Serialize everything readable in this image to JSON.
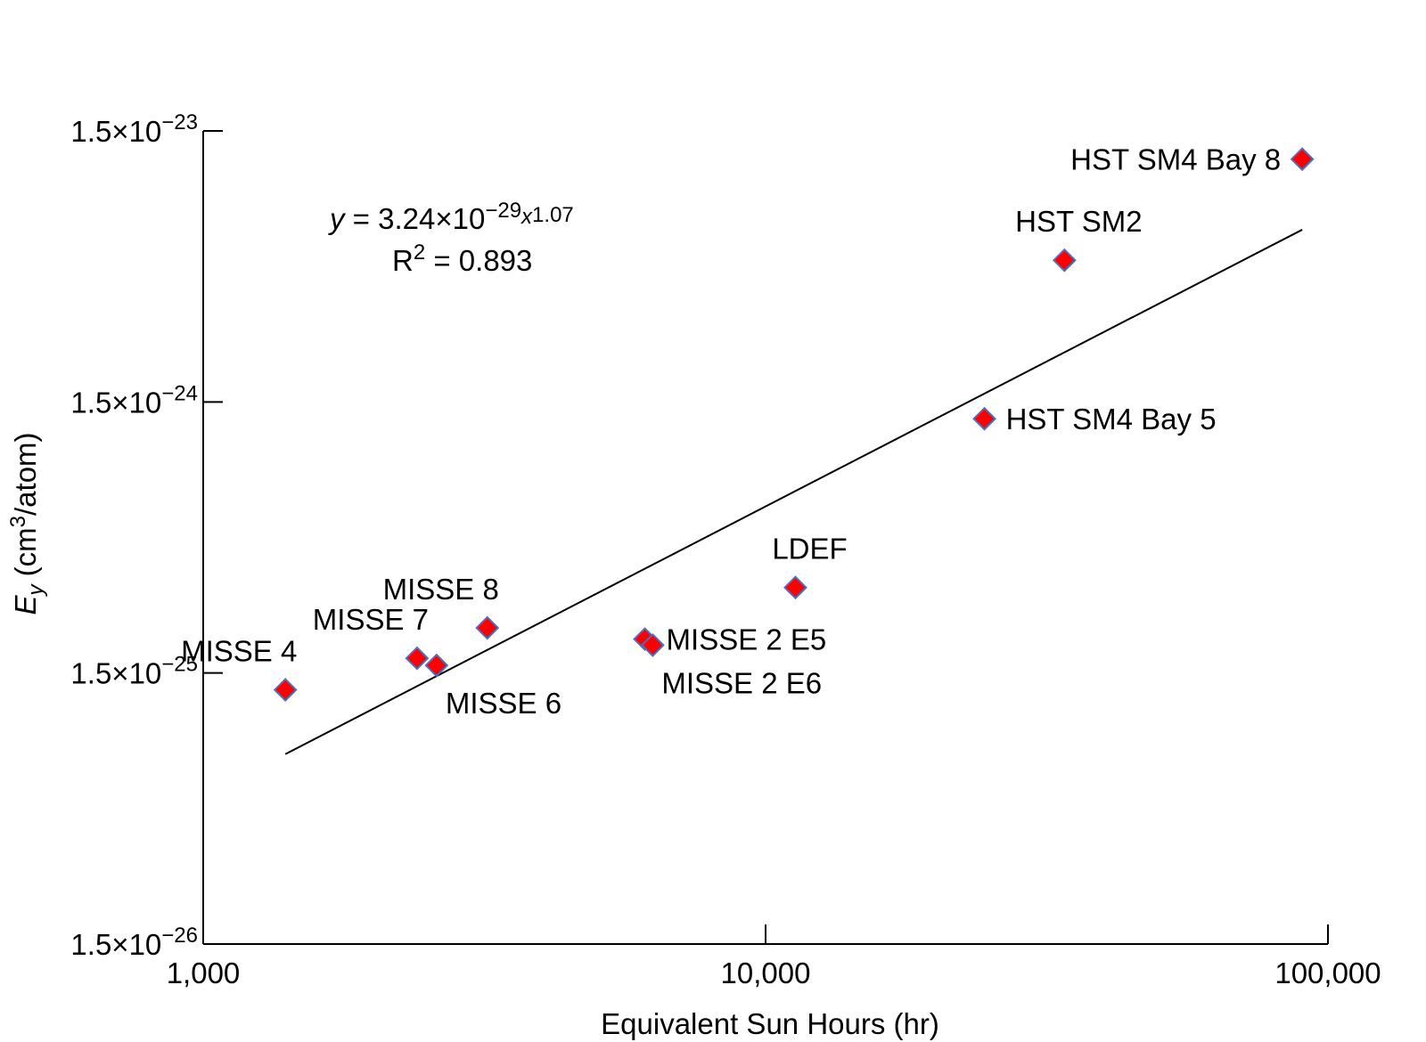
{
  "chart_data": {
    "type": "scatter",
    "title": "",
    "xlabel": "Equivalent Sun Hours (hr)",
    "ylabel": {
      "var": "E",
      "sub": "y",
      "unit_open": " (cm",
      "unit_sup": "3",
      "unit_close": "/atom)"
    },
    "x_scale": "log",
    "y_scale": "log",
    "xlim": [
      1000,
      100000
    ],
    "ylim": [
      1.5e-26,
      1.5e-23
    ],
    "grid": false,
    "x_ticks": [
      {
        "value": 1000,
        "label": "1,000"
      },
      {
        "value": 10000,
        "label": "10,000"
      },
      {
        "value": 100000,
        "label": "100,000"
      }
    ],
    "y_ticks": [
      {
        "value": 1.5e-23,
        "mantissa": "1.5×10",
        "exp": "−23"
      },
      {
        "value": 1.5e-24,
        "mantissa": "1.5×10",
        "exp": "−24"
      },
      {
        "value": 1.5e-25,
        "mantissa": "1.5×10",
        "exp": "−25"
      },
      {
        "value": 1.5e-26,
        "mantissa": "1.5×10",
        "exp": "−26"
      }
    ],
    "points": [
      {
        "label": "MISSE 4",
        "x": 1400,
        "y": 1.3e-25,
        "label_pos": "above-left"
      },
      {
        "label": "MISSE 7",
        "x": 2400,
        "y": 1.7e-25,
        "label_pos": "above-left"
      },
      {
        "label": "MISSE 6",
        "x": 2600,
        "y": 1.6e-25,
        "label_pos": "below-right"
      },
      {
        "label": "MISSE 8",
        "x": 3200,
        "y": 2.2e-25,
        "label_pos": "above-left"
      },
      {
        "label": "MISSE 2 E5",
        "x": 6100,
        "y": 2e-25,
        "label_pos": "right"
      },
      {
        "label": "MISSE 2 E6",
        "x": 6300,
        "y": 1.9e-25,
        "label_pos": "below-right"
      },
      {
        "label": "LDEF",
        "x": 11300,
        "y": 3.1e-25,
        "label_pos": "above"
      },
      {
        "label": "HST SM4 Bay 5",
        "x": 24500,
        "y": 1.3e-24,
        "label_pos": "right"
      },
      {
        "label": "HST SM2",
        "x": 34000,
        "y": 5e-24,
        "label_pos": "above"
      },
      {
        "label": "HST SM4 Bay 8",
        "x": 90000,
        "y": 1.18e-23,
        "label_pos": "left"
      }
    ],
    "marker": {
      "shape": "diamond",
      "fill": "#ff0000",
      "stroke": "#4a6fc0"
    },
    "fit": {
      "type": "power",
      "a": 3.24e-29,
      "b": 1.07,
      "r2": 0.893,
      "x_range": [
        1400,
        90000
      ],
      "color": "#000000",
      "equation": {
        "y_var": "y",
        "equals": " = 3.24×10",
        "exp": "−29",
        "x_var": "x",
        "power": "1.07"
      },
      "r2_text": {
        "prefix": "R",
        "sup": "2",
        "rest": " = 0.893"
      }
    }
  }
}
